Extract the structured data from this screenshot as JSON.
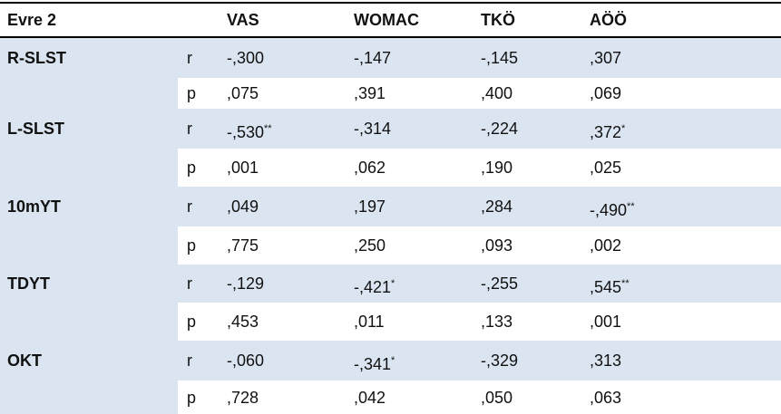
{
  "table": {
    "header": [
      "Evre 2",
      "VAS",
      "WOMAC",
      "TKÖ",
      "AÖÖ"
    ],
    "rows": [
      {
        "group": "R-SLST",
        "stat": "r",
        "cells": [
          {
            "value": "-,300"
          },
          {
            "value": "-,147"
          },
          {
            "value": "-,145"
          },
          {
            "value": ",307"
          }
        ]
      },
      {
        "stat": "p",
        "cells": [
          {
            "value": ",075"
          },
          {
            "value": ",391"
          },
          {
            "value": ",400"
          },
          {
            "value": ",069"
          }
        ]
      },
      {
        "group": "L-SLST",
        "stat": "r",
        "cells": [
          {
            "value": "-,530",
            "sup": "**"
          },
          {
            "value": "-,314"
          },
          {
            "value": "-,224"
          },
          {
            "value": ",372",
            "sup": "*"
          }
        ]
      },
      {
        "stat": "p",
        "cells": [
          {
            "value": ",001"
          },
          {
            "value": ",062"
          },
          {
            "value": ",190"
          },
          {
            "value": ",025"
          }
        ]
      },
      {
        "group": "10mYT",
        "stat": "r",
        "cells": [
          {
            "value": ",049"
          },
          {
            "value": ",197"
          },
          {
            "value": ",284"
          },
          {
            "value": "-,490",
            "sup": "**"
          }
        ]
      },
      {
        "stat": "p",
        "cells": [
          {
            "value": ",775"
          },
          {
            "value": ",250"
          },
          {
            "value": ",093"
          },
          {
            "value": ",002"
          }
        ]
      },
      {
        "group": "TDYT",
        "stat": "r",
        "cells": [
          {
            "value": "-,129"
          },
          {
            "value": "-,421",
            "sup": "*"
          },
          {
            "value": "-,255"
          },
          {
            "value": ",545",
            "sup": "**"
          }
        ]
      },
      {
        "stat": "p",
        "cells": [
          {
            "value": ",453"
          },
          {
            "value": ",011"
          },
          {
            "value": ",133"
          },
          {
            "value": ",001"
          }
        ]
      },
      {
        "group": "OKT",
        "stat": "r",
        "cells": [
          {
            "value": "-,060"
          },
          {
            "value": "-,341",
            "sup": "*"
          },
          {
            "value": "-,329"
          },
          {
            "value": ",313"
          }
        ]
      },
      {
        "stat": "p",
        "cells": [
          {
            "value": ",728"
          },
          {
            "value": ",042"
          },
          {
            "value": ",050"
          },
          {
            "value": ",063"
          }
        ]
      }
    ]
  }
}
